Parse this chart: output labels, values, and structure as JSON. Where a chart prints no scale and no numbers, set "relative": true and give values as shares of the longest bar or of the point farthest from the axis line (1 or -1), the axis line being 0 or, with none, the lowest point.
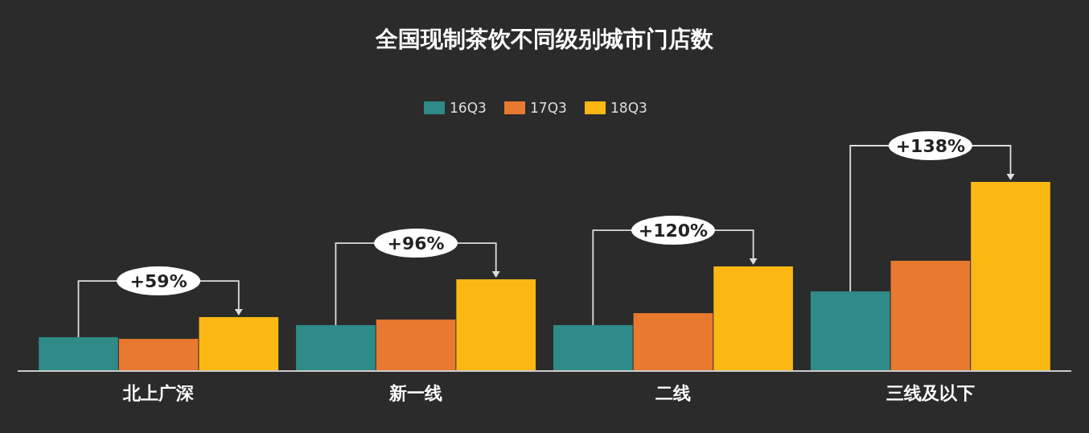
{
  "chart_data": {
    "type": "bar",
    "title": "全国现制茶饮不同级别城市门店数",
    "relative": true,
    "legend": "top",
    "categories": [
      "北上广深",
      "新一线",
      "二线",
      "三线及以下"
    ],
    "series": [
      {
        "name": "16Q3",
        "color": "#2e8b87",
        "values": [
          0.179,
          0.243,
          0.243,
          0.421
        ]
      },
      {
        "name": "17Q3",
        "color": "#e8792f",
        "values": [
          0.17,
          0.272,
          0.306,
          0.583
        ]
      },
      {
        "name": "18Q3",
        "color": "#fbb813",
        "values": [
          0.285,
          0.485,
          0.553,
          1
        ]
      }
    ],
    "annotations": [
      "+59%",
      "+96%",
      "+120%",
      "+138%"
    ]
  }
}
